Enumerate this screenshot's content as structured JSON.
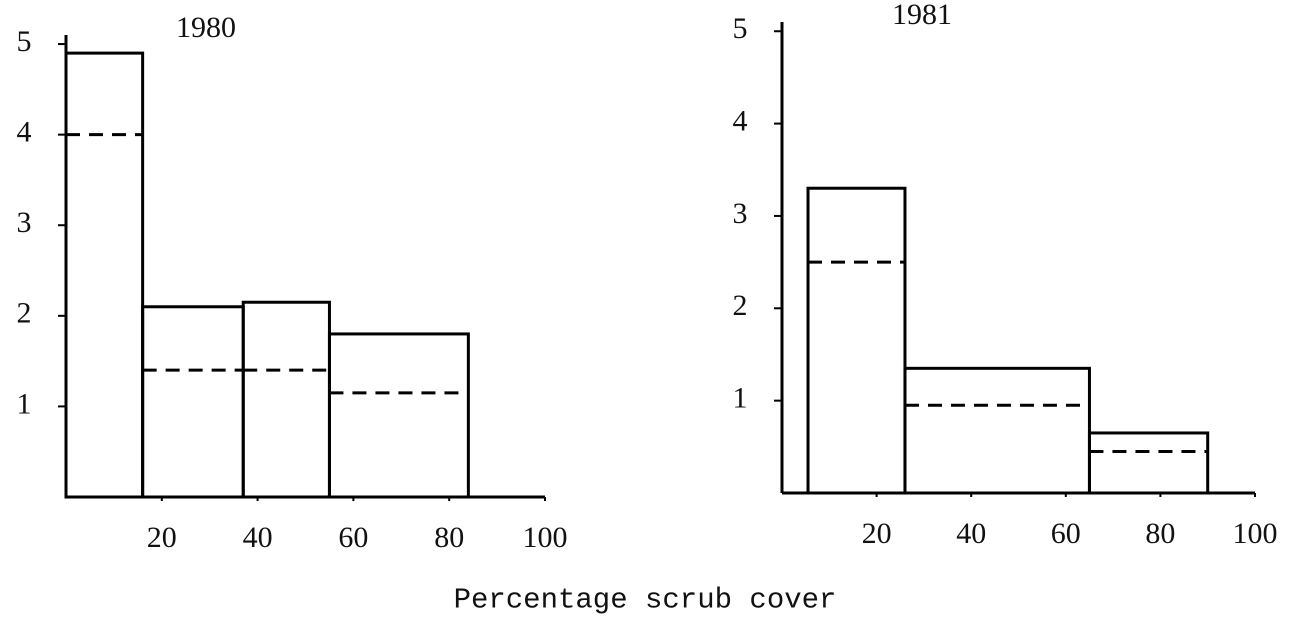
{
  "chart_data": [
    {
      "type": "histogram",
      "title": "1980",
      "bins": [
        0,
        16,
        37,
        55,
        84
      ],
      "series": [
        {
          "color": "#000000",
          "style": "solid",
          "values": [
            4.9,
            2.1,
            2.15,
            1.8
          ]
        },
        {
          "color": "#000000",
          "style": "dashed",
          "values": [
            4.0,
            1.4,
            1.4,
            1.15
          ]
        }
      ],
      "xlim": [
        0,
        100
      ],
      "xticks": [
        20,
        40,
        60,
        80,
        100
      ],
      "ylim": [
        0,
        5.1
      ],
      "yticks": [
        1,
        2,
        3,
        4,
        5
      ]
    },
    {
      "type": "histogram",
      "title": "1981",
      "bins": [
        5.5,
        26,
        65,
        90
      ],
      "series": [
        {
          "color": "#000000",
          "style": "solid",
          "values": [
            3.3,
            1.35,
            0.65
          ]
        },
        {
          "color": "#000000",
          "style": "dashed",
          "values": [
            2.5,
            0.95,
            0.45
          ]
        }
      ],
      "xlim": [
        0,
        100
      ],
      "xticks": [
        20,
        40,
        60,
        80,
        100
      ],
      "ylim": [
        0,
        5.1
      ],
      "yticks": [
        1,
        2,
        3,
        4,
        5
      ]
    }
  ],
  "xlabel": "Percentage scrub cover"
}
